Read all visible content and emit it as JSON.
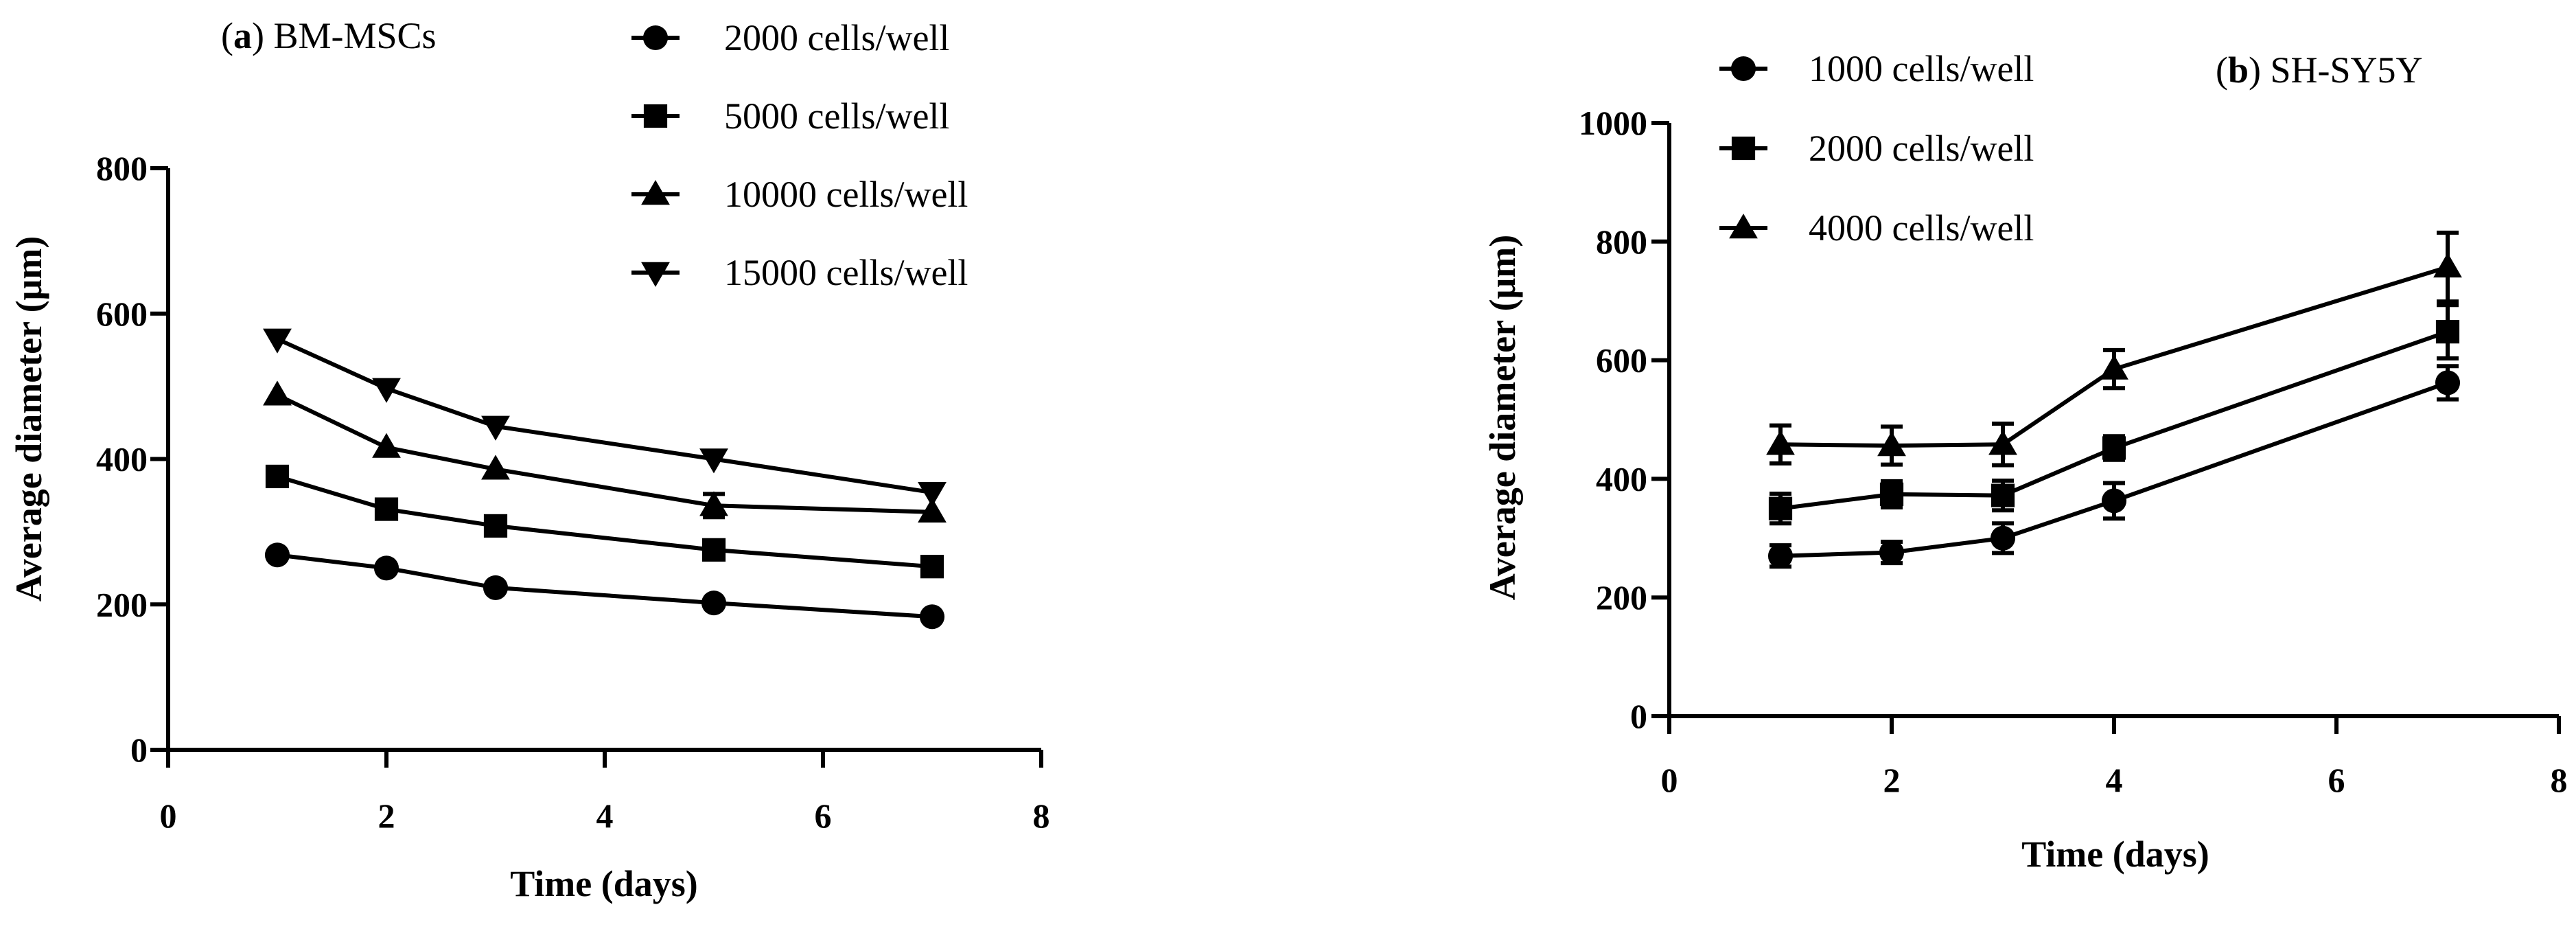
{
  "chart_data": [
    {
      "type": "line",
      "panel_label": "a",
      "title": "BM-MSCs",
      "xlabel": "Time (days)",
      "ylabel": "Average diameter (μm)",
      "xlim": [
        0,
        8
      ],
      "ylim": [
        0,
        800
      ],
      "xticks": [
        "0",
        "2",
        "4",
        "6",
        "8"
      ],
      "yticks": [
        "0",
        "200",
        "400",
        "600",
        "800"
      ],
      "legend_position": "top-right",
      "x": [
        1,
        2,
        3,
        5,
        7
      ],
      "series": [
        {
          "name": "2000 cells/well",
          "marker": "circle",
          "values": [
            268,
            250,
            223,
            202,
            183
          ],
          "errors": [
            0,
            0,
            0,
            0,
            0
          ]
        },
        {
          "name": "5000 cells/well",
          "marker": "square",
          "values": [
            376,
            331,
            308,
            275,
            252
          ],
          "errors": [
            0,
            0,
            0,
            0,
            0
          ]
        },
        {
          "name": "10000 cells/well",
          "marker": "triangle-up",
          "values": [
            488,
            416,
            386,
            336,
            327
          ],
          "errors": [
            0,
            0,
            0,
            16,
            0
          ]
        },
        {
          "name": "15000 cells/well",
          "marker": "triangle-down",
          "values": [
            565,
            497,
            445,
            400,
            354
          ],
          "errors": [
            0,
            0,
            0,
            0,
            0
          ]
        }
      ]
    },
    {
      "type": "line",
      "panel_label": "b",
      "title": "SH-SY5Y",
      "xlabel": "Time (days)",
      "ylabel": "Average diameter (μm)",
      "xlim": [
        0,
        8
      ],
      "ylim": [
        0,
        1000
      ],
      "xticks": [
        "0",
        "2",
        "4",
        "6",
        "8"
      ],
      "yticks": [
        "0",
        "200",
        "400",
        "600",
        "800",
        "1000"
      ],
      "legend_position": "top-left",
      "x": [
        1,
        2,
        3,
        4,
        7
      ],
      "series": [
        {
          "name": "1000 cells/well",
          "marker": "circle",
          "values": [
            270,
            276,
            300,
            363,
            562
          ],
          "errors": [
            18,
            18,
            25,
            30,
            28
          ]
        },
        {
          "name": "2000 cells/well",
          "marker": "square",
          "values": [
            350,
            374,
            372,
            452,
            648
          ],
          "errors": [
            25,
            22,
            25,
            20,
            45
          ]
        },
        {
          "name": "4000 cells/well",
          "marker": "triangle-up",
          "values": [
            458,
            456,
            458,
            585,
            757
          ],
          "errors": [
            32,
            32,
            35,
            32,
            58
          ]
        }
      ]
    }
  ]
}
